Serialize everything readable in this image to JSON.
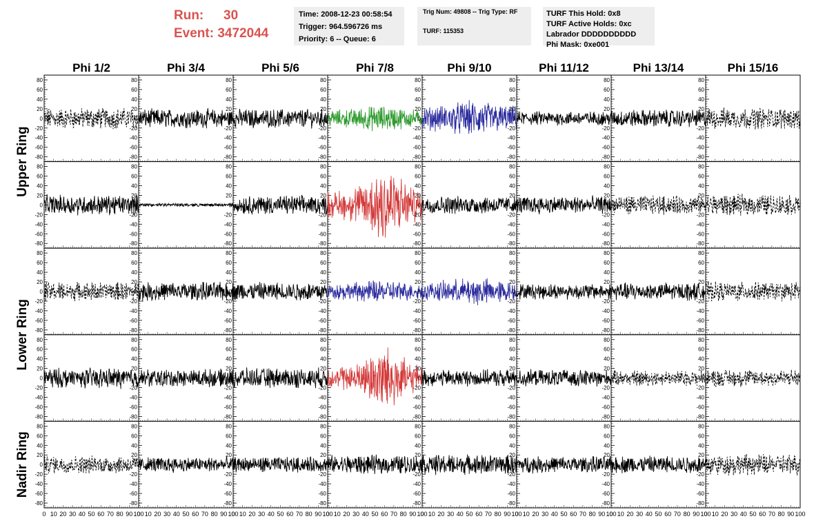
{
  "header": {
    "run_label": "Run:",
    "run_value": "30",
    "event_label": "Event:",
    "event_value": "3472044",
    "info_time": [
      "Time: 2008-12-23 00:58:54",
      "Trigger: 964.596726 ms",
      "Priority: 6 -- Queue: 6"
    ],
    "info_trig": [
      "Trig Num: 49808 -- Trig Type: RF",
      "TURF: 115353"
    ],
    "info_turf": [
      "TURF This Hold: 0x8",
      "TURF Active Holds: 0xc",
      "Labrador DDDDDDDDDD",
      "Phi Mask: 0xe001"
    ]
  },
  "chart_data": {
    "type": "line",
    "columns": [
      "Phi 1/2",
      "Phi 3/4",
      "Phi 5/6",
      "Phi 7/8",
      "Phi 9/10",
      "Phi 11/12",
      "Phi 13/14",
      "Phi 15/16"
    ],
    "ring_labels": [
      "Upper Ring",
      "Lower Ring",
      "Nadir Ring"
    ],
    "y_ticks": [
      "80",
      "60",
      "40",
      "20",
      "0",
      "-20",
      "-40",
      "-60",
      "-80"
    ],
    "x_ticks": [
      "0",
      "10",
      "20",
      "30",
      "40",
      "50",
      "60",
      "70",
      "80",
      "90",
      "100"
    ],
    "xlim": [
      0,
      100
    ],
    "ylim": [
      -90,
      90
    ],
    "colors": {
      "black": "#000000",
      "green": "#2e9a2e",
      "blue": "#2b2b9e",
      "red": "#d43a3a"
    },
    "panels": [
      [
        "dashed:18",
        "black:16",
        "black:16",
        "green:20",
        "blue:28",
        "black:12",
        "black:15",
        "dashed:18"
      ],
      [
        "black:17",
        "flat:3",
        "black:16",
        "red:50",
        "black:15",
        "black:15",
        "dashed:16",
        "dashed:18"
      ],
      [
        "dashed:16",
        "black:16",
        "black:16",
        "blue:18",
        "blue:22",
        "black:13",
        "black:15",
        "dashed:16"
      ],
      [
        "black:17",
        "black:15",
        "black:17",
        "red:40",
        "black:14",
        "black:14",
        "dashed:13",
        "dashed:15"
      ],
      [
        "dashed:15",
        "black:13",
        "black:13",
        "black:16",
        "black:17",
        "black:14",
        "black:15",
        "dashed:18"
      ]
    ]
  }
}
